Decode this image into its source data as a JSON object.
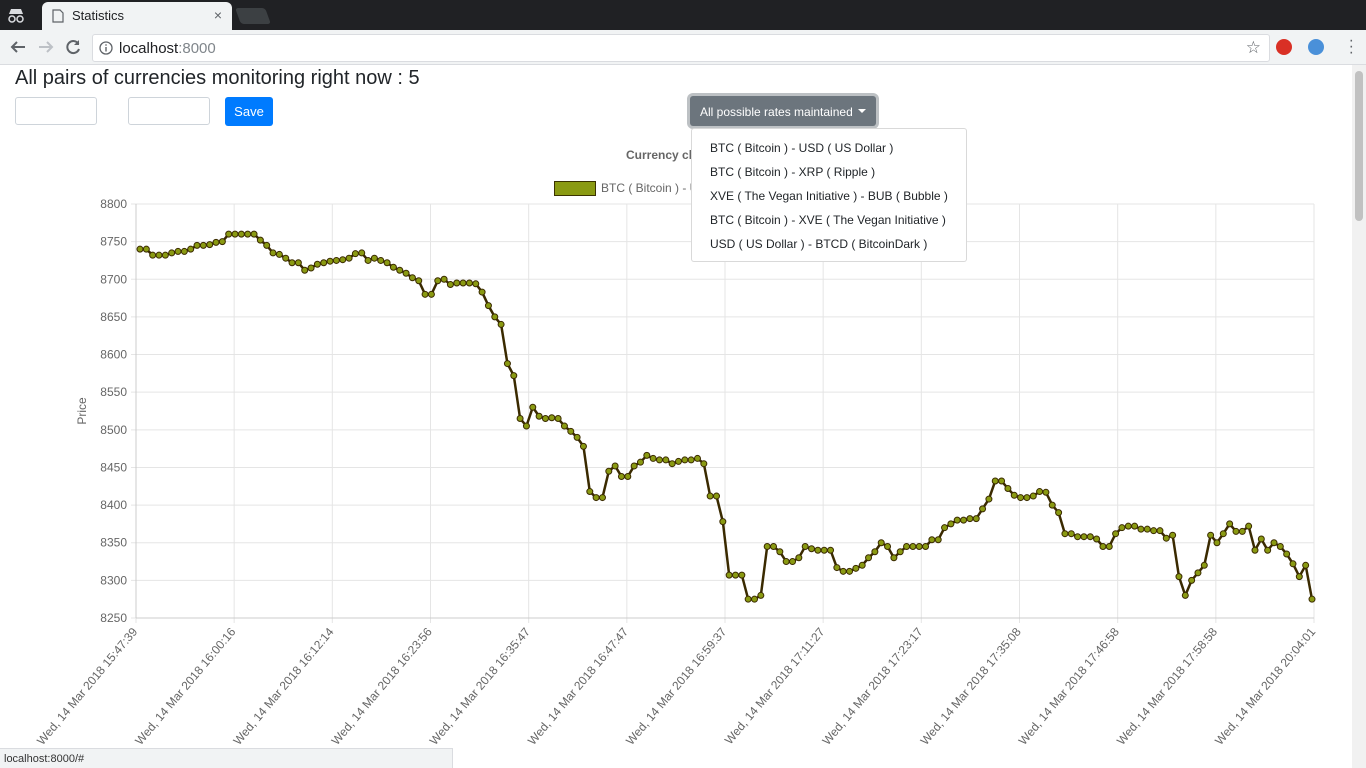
{
  "browser": {
    "tab_title": "Statistics",
    "tab_close": "×",
    "url_host": "localhost",
    "url_port": ":8000",
    "status_url": "localhost:8000/#"
  },
  "page": {
    "heading": "All pairs of currencies monitoring right now : 5",
    "save_label": "Save",
    "dropdown_label": "All possible rates maintained",
    "dropdown_items": [
      "BTC ( Bitcoin ) - USD ( US Dollar )",
      "BTC ( Bitcoin ) - XRP ( Ripple )",
      "XVE ( The Vegan Initiative ) - BUB ( Bubble )",
      "BTC ( Bitcoin ) - XVE ( The Vegan Initiative )",
      "USD ( US Dollar ) - BTCD ( BitcoinDark )"
    ]
  },
  "chart_data": {
    "type": "line",
    "title": "Currency ch",
    "legend_label": "BTC ( Bitcoin ) - U",
    "ylabel": "Price",
    "ylim": [
      8250,
      8800
    ],
    "yticks": [
      8250,
      8300,
      8350,
      8400,
      8450,
      8500,
      8550,
      8600,
      8650,
      8700,
      8750,
      8800
    ],
    "xtick_labels": [
      "Wed, 14 Mar 2018 15:47:39",
      "Wed, 14 Mar 2018 16:00:16",
      "Wed, 14 Mar 2018 16:12:14",
      "Wed, 14 Mar 2018 16:23:56",
      "Wed, 14 Mar 2018 16:35:47",
      "Wed, 14 Mar 2018 16:47:47",
      "Wed, 14 Mar 2018 16:59:37",
      "Wed, 14 Mar 2018 17:11:27",
      "Wed, 14 Mar 2018 17:23:17",
      "Wed, 14 Mar 2018 17:35:08",
      "Wed, 14 Mar 2018 17:46:58",
      "Wed, 14 Mar 2018 17:58:58",
      "Wed, 14 Mar 2018 20:04:01"
    ],
    "series": [
      {
        "color": "#8a9a12",
        "line_color": "#3a2a00",
        "values": [
          8740,
          8740,
          8732,
          8732,
          8732,
          8735,
          8737,
          8737,
          8740,
          8745,
          8745,
          8746,
          8749,
          8750,
          8760,
          8760,
          8760,
          8760,
          8760,
          8752,
          8745,
          8735,
          8733,
          8728,
          8722,
          8722,
          8712,
          8715,
          8720,
          8722,
          8724,
          8725,
          8726,
          8728,
          8734,
          8735,
          8725,
          8728,
          8725,
          8722,
          8716,
          8712,
          8708,
          8702,
          8698,
          8680,
          8680,
          8698,
          8700,
          8693,
          8695,
          8695,
          8695,
          8694,
          8683,
          8665,
          8650,
          8640,
          8588,
          8572,
          8515,
          8505,
          8530,
          8518,
          8515,
          8516,
          8515,
          8505,
          8498,
          8490,
          8478,
          8418,
          8410,
          8410,
          8445,
          8452,
          8438,
          8438,
          8452,
          8457,
          8466,
          8462,
          8460,
          8460,
          8455,
          8458,
          8460,
          8460,
          8462,
          8455,
          8412,
          8412,
          8378,
          8307,
          8307,
          8307,
          8275,
          8275,
          8280,
          8345,
          8345,
          8338,
          8325,
          8325,
          8330,
          8345,
          8342,
          8340,
          8340,
          8340,
          8317,
          8312,
          8312,
          8316,
          8320,
          8330,
          8338,
          8350,
          8345,
          8330,
          8338,
          8345,
          8345,
          8345,
          8345,
          8354,
          8354,
          8370,
          8375,
          8380,
          8380,
          8382,
          8382,
          8395,
          8408,
          8432,
          8432,
          8422,
          8413,
          8410,
          8410,
          8412,
          8418,
          8417,
          8400,
          8390,
          8362,
          8362,
          8358,
          8358,
          8358,
          8355,
          8345,
          8345,
          8362,
          8370,
          8372,
          8372,
          8368,
          8368,
          8366,
          8366,
          8356,
          8360,
          8305,
          8280,
          8300,
          8310,
          8320,
          8360,
          8350,
          8362,
          8375,
          8365,
          8365,
          8372,
          8340,
          8355,
          8340,
          8350,
          8345,
          8335,
          8322,
          8305,
          8320,
          8275
        ]
      }
    ]
  }
}
